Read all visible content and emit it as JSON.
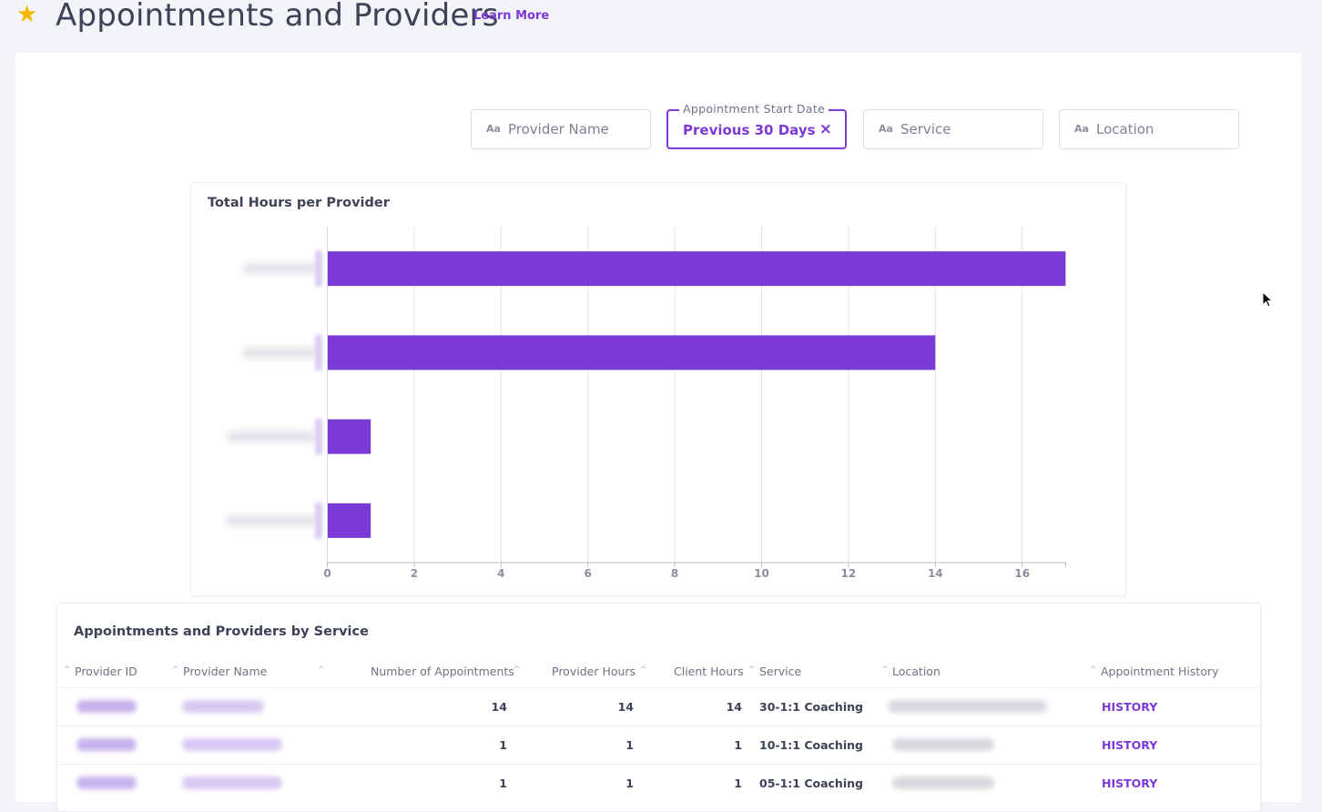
{
  "header": {
    "title": "Appointments and Providers",
    "learn_more": "Learn More"
  },
  "filters": {
    "provider_name": {
      "icon": "Aa",
      "placeholder": "Provider Name"
    },
    "start_date": {
      "label": "Appointment Start Date",
      "value": "Previous 30 Days",
      "clear": "×"
    },
    "service": {
      "icon": "Aa",
      "placeholder": "Service"
    },
    "location": {
      "icon": "Aa",
      "placeholder": "Location"
    }
  },
  "chart_card": {
    "title": "Total Hours per Provider"
  },
  "chart_data": {
    "type": "bar",
    "orientation": "horizontal",
    "title": "Total Hours per Provider",
    "categories": [
      "(redacted)",
      "(redacted)",
      "(redacted)",
      "(redacted)"
    ],
    "values": [
      17,
      14,
      1,
      1
    ],
    "xlim": [
      0,
      17
    ],
    "xticks": [
      0,
      2,
      4,
      6,
      8,
      10,
      12,
      14,
      16
    ],
    "grid": true,
    "color": "#7b39d6"
  },
  "table": {
    "title": "Appointments and Providers by Service",
    "columns": [
      "Provider ID",
      "Provider Name",
      "Number of Appointments",
      "Provider Hours",
      "Client Hours",
      "Service",
      "Location",
      "Appointment History"
    ],
    "rows": [
      {
        "appointments": "14",
        "provider_hours": "14",
        "client_hours": "14",
        "service": "30-1:1 Coaching",
        "history": "HISTORY"
      },
      {
        "appointments": "1",
        "provider_hours": "1",
        "client_hours": "1",
        "service": "10-1:1 Coaching",
        "history": "HISTORY"
      },
      {
        "appointments": "1",
        "provider_hours": "1",
        "client_hours": "1",
        "service": "05-1:1 Coaching",
        "history": "HISTORY"
      }
    ]
  },
  "colors": {
    "accent": "#7b39d6",
    "star": "#f5b800",
    "text": "#3d4356"
  }
}
